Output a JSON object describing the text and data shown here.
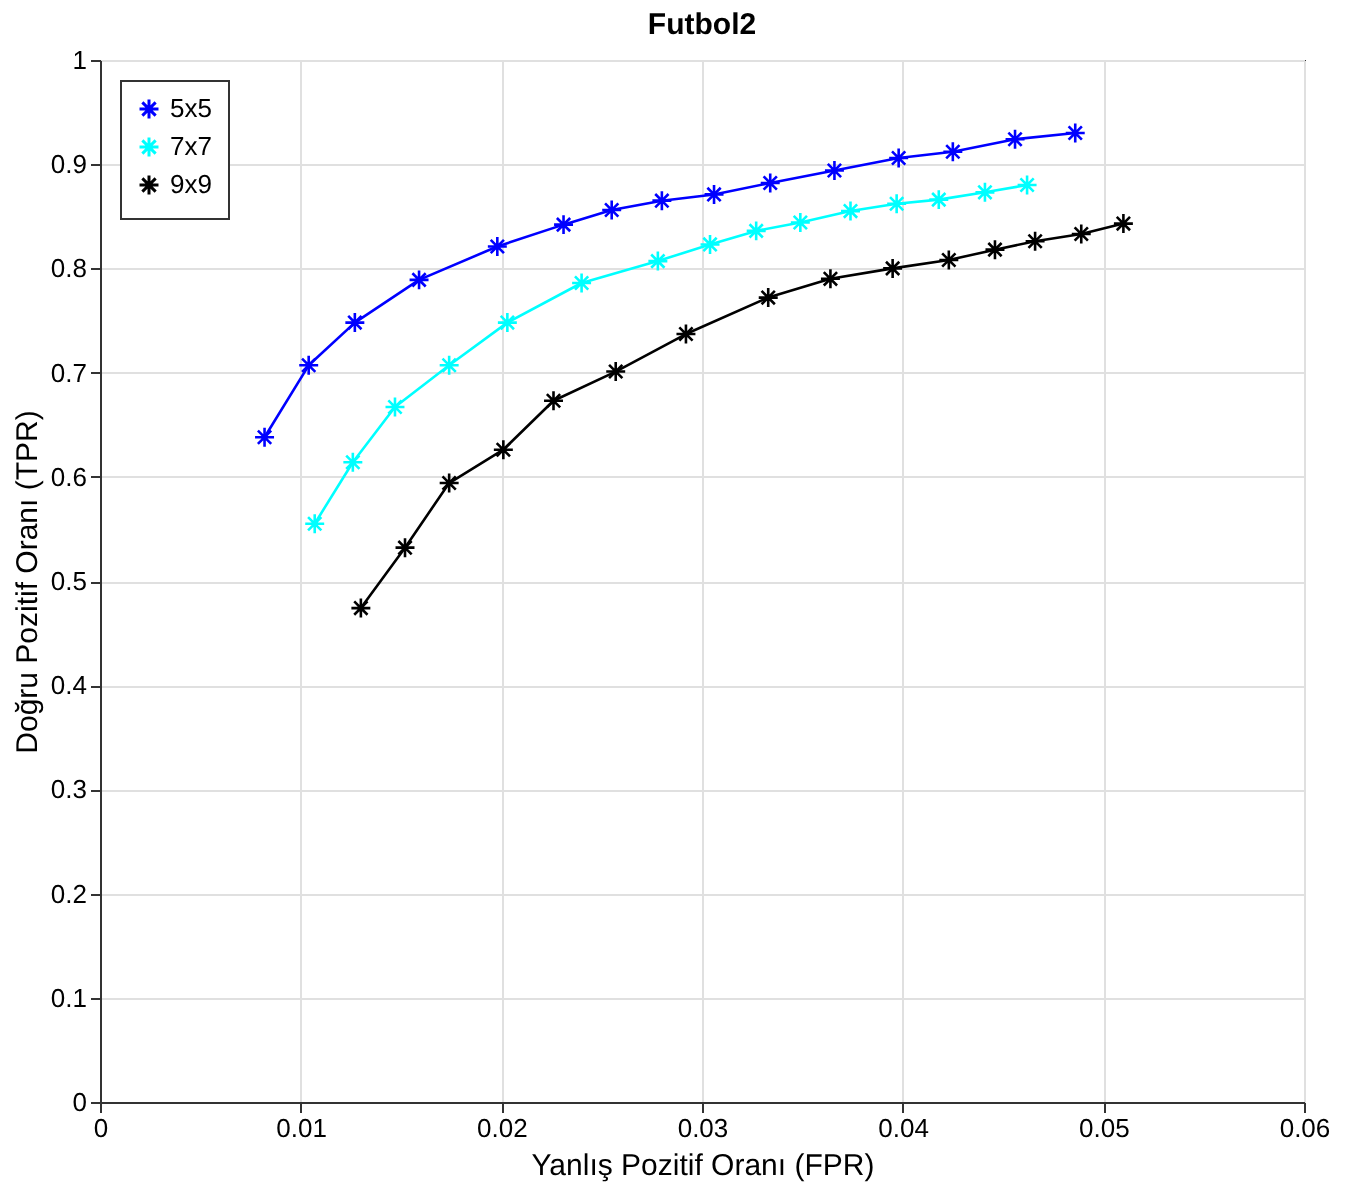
{
  "chart_data": {
    "type": "line",
    "title": "Futbol2",
    "xlabel": "Yanlış Pozitif Oranı (FPR)",
    "ylabel": "Doğru Pozitif Oranı (TPR)",
    "xlim": [
      0,
      0.06
    ],
    "xticks": [
      0,
      0.01,
      0.02,
      0.03,
      0.04,
      0.05,
      0.06
    ],
    "ylim": [
      0,
      1
    ],
    "yticks": [
      0,
      0.1,
      0.2,
      0.3,
      0.4,
      0.5,
      0.6,
      0.7,
      0.8,
      0.9,
      1
    ],
    "grid": true,
    "legend": "top left",
    "marker": "cross",
    "line_style": "solid",
    "series": [
      {
        "name": "5x5",
        "color": "#0000ff",
        "x": [
          0.0082,
          0.0104,
          0.0127,
          0.0159,
          0.0198,
          0.0231,
          0.0255,
          0.028,
          0.0306,
          0.0334,
          0.0366,
          0.0398,
          0.0425,
          0.0456,
          0.0486
        ],
        "values": [
          0.638,
          0.707,
          0.748,
          0.789,
          0.821,
          0.842,
          0.856,
          0.865,
          0.871,
          0.882,
          0.894,
          0.906,
          0.912,
          0.924,
          0.93
        ]
      },
      {
        "name": "7x7",
        "color": "#00ffff",
        "x": [
          0.0107,
          0.0126,
          0.0147,
          0.0174,
          0.0203,
          0.024,
          0.0278,
          0.0304,
          0.0327,
          0.0349,
          0.0374,
          0.0397,
          0.0418,
          0.0441,
          0.0462
        ],
        "values": [
          0.555,
          0.614,
          0.667,
          0.707,
          0.748,
          0.786,
          0.807,
          0.823,
          0.836,
          0.844,
          0.855,
          0.862,
          0.866,
          0.873,
          0.88
        ]
      },
      {
        "name": "9x9",
        "color": "#000000",
        "x": [
          0.013,
          0.0152,
          0.0174,
          0.0201,
          0.0226,
          0.0257,
          0.0292,
          0.0333,
          0.0364,
          0.0395,
          0.0423,
          0.0446,
          0.0466,
          0.0489,
          0.051
        ],
        "values": [
          0.474,
          0.532,
          0.594,
          0.626,
          0.673,
          0.701,
          0.737,
          0.772,
          0.79,
          0.8,
          0.808,
          0.818,
          0.826,
          0.833,
          0.843
        ]
      }
    ]
  }
}
